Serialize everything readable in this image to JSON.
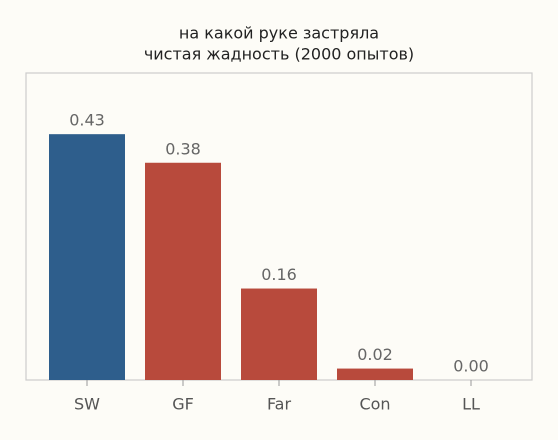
{
  "chart_data": {
    "type": "bar",
    "title": [
      "на какой руке застряла",
      "чистая жадность (2000 опытов)"
    ],
    "categories": [
      "SW",
      "GF",
      "Far",
      "Con",
      "LL"
    ],
    "values": [
      0.43,
      0.38,
      0.16,
      0.02,
      0.0
    ],
    "value_labels": [
      "0.43",
      "0.38",
      "0.16",
      "0.02",
      "0.00"
    ],
    "colors": [
      "#2e5e8c",
      "#b84a3c",
      "#b84a3c",
      "#b84a3c",
      "#b84a3c"
    ],
    "ylim": [
      0,
      0.537
    ]
  }
}
